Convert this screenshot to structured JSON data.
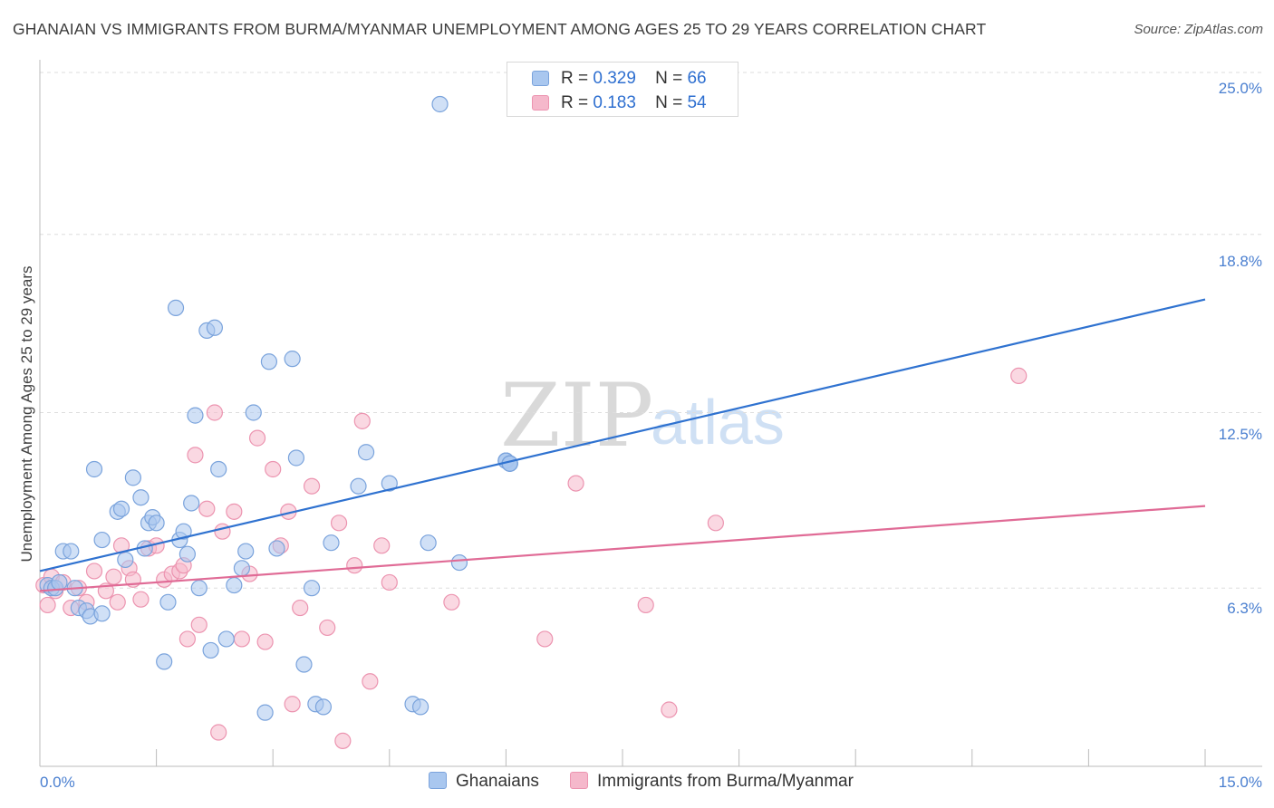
{
  "header": {
    "title": "GHANAIAN VS IMMIGRANTS FROM BURMA/MYANMAR UNEMPLOYMENT AMONG AGES 25 TO 29 YEARS CORRELATION CHART",
    "source": "Source: ZipAtlas.com"
  },
  "watermark": {
    "zip": "ZIP",
    "atlas": "atlas"
  },
  "legend": {
    "series1": {
      "r_label": "R =",
      "r_value": "0.329",
      "n_label": "N =",
      "n_value": "66"
    },
    "series2": {
      "r_label": "R =",
      "r_value": "0.183",
      "n_label": "N =",
      "n_value": "54"
    }
  },
  "bottom_legend": {
    "series1": "Ghanaians",
    "series2": "Immigrants from Burma/Myanmar"
  },
  "colors": {
    "blue_fill": "#a9c7ef",
    "blue_stroke": "#7aa3dc",
    "blue_line": "#2f72d0",
    "pink_fill": "#f5b8cb",
    "pink_stroke": "#ec94b0",
    "pink_line": "#e06b96",
    "tick_text": "#4a7fd0",
    "grid": "#dddddd"
  },
  "chart_data": {
    "type": "scatter",
    "title": "GHANAIAN VS IMMIGRANTS FROM BURMA/MYANMAR UNEMPLOYMENT AMONG AGES 25 TO 29 YEARS CORRELATION CHART",
    "xlabel": "",
    "ylabel": "Unemployment Among Ages 25 to 29 years",
    "xlim": [
      0,
      15
    ],
    "ylim": [
      0,
      25
    ],
    "y_ticks": [
      {
        "value": 25.0,
        "label": "25.0%"
      },
      {
        "value": 18.8,
        "label": "18.8%"
      },
      {
        "value": 12.5,
        "label": "12.5%"
      },
      {
        "value": 6.3,
        "label": "6.3%"
      }
    ],
    "x_tick_labels": {
      "min": "0.0%",
      "max": "15.0%"
    },
    "series": [
      {
        "name": "Ghanaians",
        "r": 0.329,
        "n": 66,
        "trend": {
          "x": [
            0,
            15
          ],
          "y": [
            6.9,
            16.5
          ]
        },
        "points": [
          [
            0.1,
            6.4
          ],
          [
            0.15,
            6.3
          ],
          [
            0.2,
            6.3
          ],
          [
            0.25,
            6.5
          ],
          [
            0.3,
            7.6
          ],
          [
            0.4,
            7.6
          ],
          [
            0.45,
            6.3
          ],
          [
            0.5,
            5.6
          ],
          [
            0.6,
            5.5
          ],
          [
            0.65,
            5.3
          ],
          [
            0.7,
            10.5
          ],
          [
            0.8,
            5.4
          ],
          [
            0.8,
            8.0
          ],
          [
            1.0,
            9.0
          ],
          [
            1.05,
            9.1
          ],
          [
            1.1,
            7.3
          ],
          [
            1.2,
            10.2
          ],
          [
            1.3,
            9.5
          ],
          [
            1.35,
            7.7
          ],
          [
            1.4,
            8.6
          ],
          [
            1.45,
            8.8
          ],
          [
            1.5,
            8.6
          ],
          [
            1.6,
            3.7
          ],
          [
            1.65,
            5.8
          ],
          [
            1.75,
            16.2
          ],
          [
            1.8,
            8.0
          ],
          [
            1.85,
            8.3
          ],
          [
            1.9,
            7.5
          ],
          [
            1.95,
            9.3
          ],
          [
            2.0,
            12.4
          ],
          [
            2.05,
            6.3
          ],
          [
            2.15,
            15.4
          ],
          [
            2.2,
            4.1
          ],
          [
            2.25,
            15.5
          ],
          [
            2.3,
            10.5
          ],
          [
            2.4,
            4.5
          ],
          [
            2.5,
            6.4
          ],
          [
            2.6,
            7.0
          ],
          [
            2.65,
            7.6
          ],
          [
            2.75,
            12.5
          ],
          [
            2.9,
            1.9
          ],
          [
            2.95,
            14.3
          ],
          [
            3.05,
            7.7
          ],
          [
            3.25,
            14.4
          ],
          [
            3.3,
            10.9
          ],
          [
            3.4,
            3.6
          ],
          [
            3.5,
            6.3
          ],
          [
            3.55,
            2.2
          ],
          [
            3.65,
            2.1
          ],
          [
            3.75,
            7.9
          ],
          [
            4.1,
            9.9
          ],
          [
            4.2,
            11.1
          ],
          [
            4.5,
            10.0
          ],
          [
            4.8,
            2.2
          ],
          [
            4.9,
            2.1
          ],
          [
            5.0,
            7.9
          ],
          [
            5.15,
            23.4
          ],
          [
            5.4,
            7.2
          ],
          [
            6.0,
            10.8
          ],
          [
            6.05,
            10.7
          ],
          [
            6.05,
            10.7
          ],
          [
            6.0,
            10.8
          ],
          [
            6.0,
            10.8
          ],
          [
            6.05,
            10.7
          ],
          [
            6.05,
            10.7
          ],
          [
            6.05,
            10.7
          ]
        ]
      },
      {
        "name": "Immigrants from Burma/Myanmar",
        "r": 0.183,
        "n": 54,
        "trend": {
          "x": [
            0,
            15
          ],
          "y": [
            6.2,
            9.2
          ]
        },
        "points": [
          [
            0.05,
            6.4
          ],
          [
            0.1,
            5.7
          ],
          [
            0.15,
            6.7
          ],
          [
            0.2,
            6.2
          ],
          [
            0.3,
            6.5
          ],
          [
            0.4,
            5.6
          ],
          [
            0.5,
            6.3
          ],
          [
            0.6,
            5.8
          ],
          [
            0.7,
            6.9
          ],
          [
            0.85,
            6.2
          ],
          [
            0.95,
            6.7
          ],
          [
            1.0,
            5.8
          ],
          [
            1.05,
            7.8
          ],
          [
            1.15,
            7.0
          ],
          [
            1.2,
            6.6
          ],
          [
            1.3,
            5.9
          ],
          [
            1.4,
            7.7
          ],
          [
            1.5,
            7.8
          ],
          [
            1.6,
            6.6
          ],
          [
            1.7,
            6.8
          ],
          [
            1.8,
            6.9
          ],
          [
            1.85,
            7.1
          ],
          [
            1.9,
            4.5
          ],
          [
            2.0,
            11.0
          ],
          [
            2.05,
            5.0
          ],
          [
            2.15,
            9.1
          ],
          [
            2.25,
            12.5
          ],
          [
            2.3,
            1.2
          ],
          [
            2.35,
            8.3
          ],
          [
            2.5,
            9.0
          ],
          [
            2.6,
            4.5
          ],
          [
            2.7,
            6.8
          ],
          [
            2.8,
            11.6
          ],
          [
            2.9,
            4.4
          ],
          [
            3.0,
            10.5
          ],
          [
            3.1,
            7.8
          ],
          [
            3.2,
            9.0
          ],
          [
            3.25,
            2.2
          ],
          [
            3.35,
            5.6
          ],
          [
            3.5,
            9.9
          ],
          [
            3.7,
            4.9
          ],
          [
            3.85,
            8.6
          ],
          [
            3.9,
            0.9
          ],
          [
            4.05,
            7.1
          ],
          [
            4.15,
            12.2
          ],
          [
            4.25,
            3.0
          ],
          [
            4.4,
            7.8
          ],
          [
            4.5,
            6.5
          ],
          [
            5.3,
            5.8
          ],
          [
            6.9,
            10.0
          ],
          [
            6.5,
            4.5
          ],
          [
            7.8,
            5.7
          ],
          [
            8.1,
            2.0
          ],
          [
            8.7,
            8.6
          ],
          [
            12.6,
            13.8
          ]
        ]
      }
    ]
  }
}
